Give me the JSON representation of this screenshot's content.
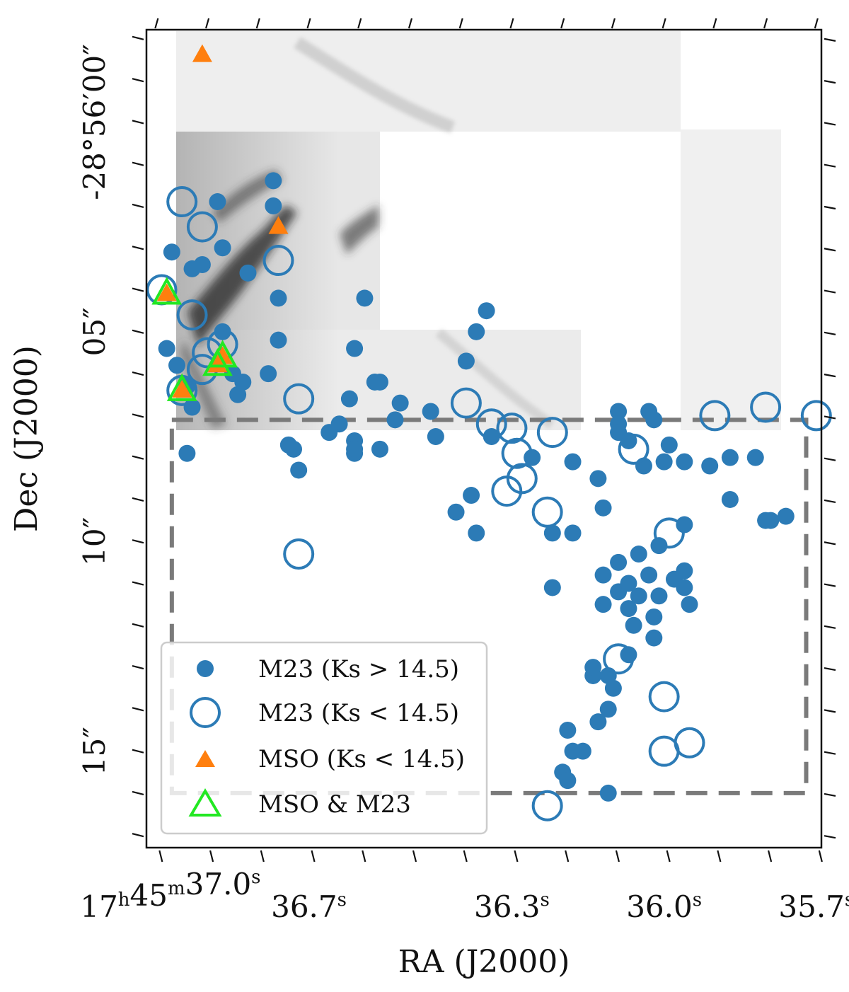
{
  "chart_data": {
    "type": "scatter",
    "xlabel": "RA (J2000)",
    "ylabel": "Dec (J2000)",
    "x_ticks": [
      {
        "ra": 37.0,
        "label_main": "17",
        "sup_h": "h",
        "label_min": "45",
        "sup_m": "m",
        "label_sec": "37.0",
        "sup_s": "s"
      },
      {
        "ra": 36.7,
        "label_main": "36.7",
        "sup_s": "s"
      },
      {
        "ra": 36.3,
        "label_main": "36.3",
        "sup_s": "s"
      },
      {
        "ra": 36.0,
        "label_main": "36.0",
        "sup_s": "s"
      },
      {
        "ra": 35.7,
        "label_main": "35.7",
        "sup_s": "s"
      }
    ],
    "y_ticks": [
      {
        "dec_offset": 0,
        "label": "-28°56′00″"
      },
      {
        "dec_offset": 5,
        "label": "05″"
      },
      {
        "dec_offset": 10,
        "label": "10″"
      },
      {
        "dec_offset": 15,
        "label": "15″"
      }
    ],
    "axis_ranges": {
      "ra_left": 37.02,
      "ra_right": 35.69,
      "dec_top": -2.2,
      "dec_bottom": 17.3
    },
    "dashed_box": {
      "ra_left": 36.97,
      "ra_right": 35.72,
      "dec_top": 7.1,
      "dec_bottom": 16.0
    },
    "legend": {
      "location": "lower-left",
      "entries": [
        {
          "marker": "filled-circle",
          "label": "M23 (Ks > 14.5)",
          "color": "#2c7bb6"
        },
        {
          "marker": "open-circle",
          "label": "M23 (Ks < 14.5)",
          "color": "#2c7bb6"
        },
        {
          "marker": "filled-triangle",
          "label": "MSO (Ks < 14.5)",
          "color": "#ff7f0e"
        },
        {
          "marker": "open-triangle",
          "label": "MSO & M23",
          "color": "#22e822"
        }
      ]
    },
    "series": [
      {
        "name": "M23 (Ks > 14.5)",
        "marker": "filled-circle",
        "points": [
          [
            36.88,
            1.9
          ],
          [
            36.97,
            3.1
          ],
          [
            36.91,
            3.4
          ],
          [
            36.93,
            3.5
          ],
          [
            36.82,
            3.6
          ],
          [
            36.76,
            4.2
          ],
          [
            36.76,
            5.2
          ],
          [
            36.85,
            6.0
          ],
          [
            36.96,
            5.8
          ],
          [
            36.98,
            5.4
          ],
          [
            36.94,
            6.3
          ],
          [
            36.87,
            3.0
          ],
          [
            36.87,
            5.0
          ],
          [
            36.78,
            6.0
          ],
          [
            36.83,
            6.2
          ],
          [
            36.93,
            6.8
          ],
          [
            36.84,
            6.5
          ],
          [
            36.77,
            1.4
          ],
          [
            36.77,
            2.0
          ],
          [
            36.59,
            4.2
          ],
          [
            36.61,
            5.4
          ],
          [
            36.57,
            6.2
          ],
          [
            36.56,
            6.2
          ],
          [
            36.52,
            6.7
          ],
          [
            36.53,
            7.1
          ],
          [
            36.45,
            7.5
          ],
          [
            36.46,
            6.9
          ],
          [
            36.39,
            5.7
          ],
          [
            36.37,
            5.0
          ],
          [
            36.35,
            4.5
          ],
          [
            36.62,
            6.6
          ],
          [
            36.64,
            7.2
          ],
          [
            36.66,
            7.4
          ],
          [
            36.61,
            7.6
          ],
          [
            36.61,
            7.9
          ],
          [
            36.61,
            7.8
          ],
          [
            36.56,
            7.8
          ],
          [
            36.73,
            7.8
          ],
          [
            36.74,
            7.7
          ],
          [
            36.72,
            8.3
          ],
          [
            36.94,
            7.9
          ],
          [
            36.34,
            7.5
          ],
          [
            36.26,
            8.0
          ],
          [
            36.18,
            8.1
          ],
          [
            36.13,
            8.5
          ],
          [
            36.04,
            8.2
          ],
          [
            36.0,
            8.1
          ],
          [
            35.96,
            8.1
          ],
          [
            35.91,
            8.2
          ],
          [
            35.87,
            8.0
          ],
          [
            35.82,
            8.0
          ],
          [
            35.87,
            9.0
          ],
          [
            35.8,
            9.5
          ],
          [
            35.79,
            9.5
          ],
          [
            35.76,
            9.4
          ],
          [
            36.38,
            8.9
          ],
          [
            36.41,
            9.3
          ],
          [
            36.37,
            9.8
          ],
          [
            36.22,
            9.8
          ],
          [
            36.18,
            9.8
          ],
          [
            36.12,
            9.2
          ],
          [
            36.09,
            6.9
          ],
          [
            36.09,
            7.2
          ],
          [
            36.09,
            7.4
          ],
          [
            36.07,
            7.6
          ],
          [
            36.03,
            6.9
          ],
          [
            36.02,
            7.1
          ],
          [
            35.99,
            7.7
          ],
          [
            35.96,
            9.6
          ],
          [
            36.01,
            10.1
          ],
          [
            36.03,
            10.8
          ],
          [
            36.01,
            11.3
          ],
          [
            35.98,
            10.9
          ],
          [
            35.96,
            11.1
          ],
          [
            35.96,
            10.7
          ],
          [
            36.05,
            11.3
          ],
          [
            36.06,
            12.0
          ],
          [
            36.07,
            11.6
          ],
          [
            36.09,
            11.2
          ],
          [
            36.12,
            11.5
          ],
          [
            36.07,
            11.0
          ],
          [
            36.05,
            10.3
          ],
          [
            36.09,
            10.5
          ],
          [
            36.12,
            10.8
          ],
          [
            36.02,
            11.8
          ],
          [
            36.02,
            12.3
          ],
          [
            36.11,
            13.2
          ],
          [
            36.14,
            13.2
          ],
          [
            36.1,
            13.5
          ],
          [
            36.11,
            14.0
          ],
          [
            36.13,
            14.3
          ],
          [
            36.19,
            14.5
          ],
          [
            36.18,
            15.0
          ],
          [
            36.2,
            15.5
          ],
          [
            36.19,
            15.7
          ],
          [
            36.16,
            15.0
          ],
          [
            36.22,
            11.1
          ],
          [
            36.14,
            13.0
          ],
          [
            36.07,
            12.7
          ],
          [
            35.95,
            11.5
          ],
          [
            36.11,
            16.0
          ]
        ]
      },
      {
        "name": "M23 (Ks < 14.5)",
        "marker": "open-circle",
        "points": [
          [
            36.95,
            1.9
          ],
          [
            36.91,
            2.5
          ],
          [
            36.76,
            3.3
          ],
          [
            36.93,
            4.6
          ],
          [
            36.87,
            5.3
          ],
          [
            36.9,
            5.5
          ],
          [
            36.91,
            5.9
          ],
          [
            36.99,
            4.0
          ],
          [
            36.95,
            6.4
          ],
          [
            36.72,
            6.6
          ],
          [
            36.39,
            6.7
          ],
          [
            36.34,
            7.2
          ],
          [
            36.3,
            7.3
          ],
          [
            36.22,
            7.4
          ],
          [
            36.29,
            7.9
          ],
          [
            36.28,
            8.5
          ],
          [
            36.31,
            8.8
          ],
          [
            36.23,
            9.3
          ],
          [
            36.06,
            7.8
          ],
          [
            35.99,
            9.8
          ],
          [
            36.72,
            10.3
          ],
          [
            36.09,
            12.8
          ],
          [
            36.0,
            13.7
          ],
          [
            36.0,
            15.0
          ],
          [
            35.95,
            14.8
          ],
          [
            36.23,
            16.3
          ],
          [
            35.9,
            7.0
          ],
          [
            35.8,
            6.8
          ],
          [
            35.7,
            7.0
          ]
        ]
      },
      {
        "name": "MSO (Ks < 14.5)",
        "marker": "filled-triangle",
        "points": [
          [
            36.91,
            -1.6
          ],
          [
            36.76,
            2.5
          ],
          [
            36.98,
            4.1
          ],
          [
            36.88,
            5.8
          ],
          [
            36.87,
            5.6
          ],
          [
            36.95,
            6.4
          ]
        ]
      },
      {
        "name": "MSO & M23",
        "marker": "open-triangle",
        "points": [
          [
            36.98,
            4.1
          ],
          [
            36.88,
            5.8
          ],
          [
            36.87,
            5.6
          ],
          [
            36.95,
            6.4
          ]
        ]
      }
    ],
    "grid": false
  }
}
